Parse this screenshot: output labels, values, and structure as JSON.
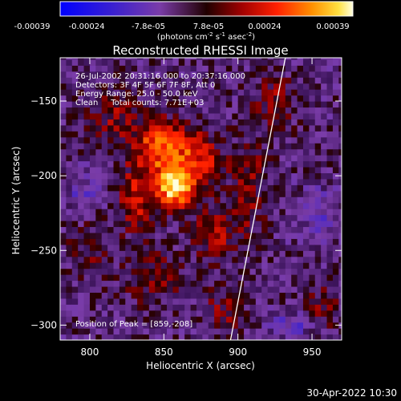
{
  "chart_data": {
    "type": "heatmap",
    "title": "Reconstructed RHESSI Image",
    "xlabel": "Heliocentric X (arcsec)",
    "ylabel": "Heliocentric Y (arcsec)",
    "xlim": [
      780,
      970
    ],
    "ylim": [
      -310,
      -121
    ],
    "xticks": [
      800,
      850,
      900,
      950
    ],
    "yticks": [
      -150,
      -200,
      -250,
      -300
    ],
    "colorbar": {
      "ticks": [
        "-0.00039",
        "-0.00024",
        "-7.8e-05",
        "7.8e-05",
        "0.00024",
        "0.00039"
      ],
      "unit_line1": "(photons cm",
      "unit_exp1": "-2",
      "unit_line2": " s",
      "unit_exp2": "-1",
      "unit_line3": " asec",
      "unit_exp3": "-2",
      "unit_close": ")",
      "min": -0.00039,
      "max": 0.00039
    },
    "info_lines": [
      "26-Jul-2002 20:31:16.000 to 20:37:16.000",
      "Detectors: 3F 4F 5F 6F 7F 8F, Att 0",
      "Energy Range: 25.0 - 50.0 keV",
      "Clean     Total counts: 7.71E+03"
    ],
    "peak_label": "Position of Peak = [859,-208]",
    "peak": [
      859,
      -208
    ],
    "limb_points": [
      [
        895,
        -310
      ],
      [
        932,
        -121
      ]
    ],
    "sources": [
      {
        "x": 857,
        "y": -207,
        "amp": 0.00039,
        "sx": 9,
        "sy": 10
      },
      {
        "x": 846,
        "y": -180,
        "amp": 0.00026,
        "sx": 12,
        "sy": 12
      },
      {
        "x": 872,
        "y": -190,
        "amp": 0.00022,
        "sx": 12,
        "sy": 14
      },
      {
        "x": 832,
        "y": -215,
        "amp": 0.00018,
        "sx": 9,
        "sy": 16
      },
      {
        "x": 884,
        "y": -238,
        "amp": 0.00016,
        "sx": 10,
        "sy": 12
      },
      {
        "x": 908,
        "y": -208,
        "amp": 0.00014,
        "sx": 8,
        "sy": 22
      },
      {
        "x": 815,
        "y": -160,
        "amp": 0.00012,
        "sx": 14,
        "sy": 12
      },
      {
        "x": 925,
        "y": -150,
        "amp": 0.00012,
        "sx": 10,
        "sy": 12
      },
      {
        "x": 842,
        "y": -268,
        "amp": 0.00011,
        "sx": 14,
        "sy": 12
      },
      {
        "x": 890,
        "y": -290,
        "amp": 0.00011,
        "sx": 10,
        "sy": 10
      },
      {
        "x": 957,
        "y": -288,
        "amp": 0.0001,
        "sx": 8,
        "sy": 10
      },
      {
        "x": 800,
        "y": -250,
        "amp": 9e-05,
        "sx": 10,
        "sy": 12
      },
      {
        "x": 935,
        "y": -300,
        "amp": -0.00012,
        "sx": 10,
        "sy": 6
      },
      {
        "x": 796,
        "y": -210,
        "amp": -0.0001,
        "sx": 8,
        "sy": 8
      },
      {
        "x": 955,
        "y": -225,
        "amp": -9e-05,
        "sx": 10,
        "sy": 12
      }
    ]
  },
  "footer": {
    "timestamp": "30-Apr-2022 10:30"
  }
}
